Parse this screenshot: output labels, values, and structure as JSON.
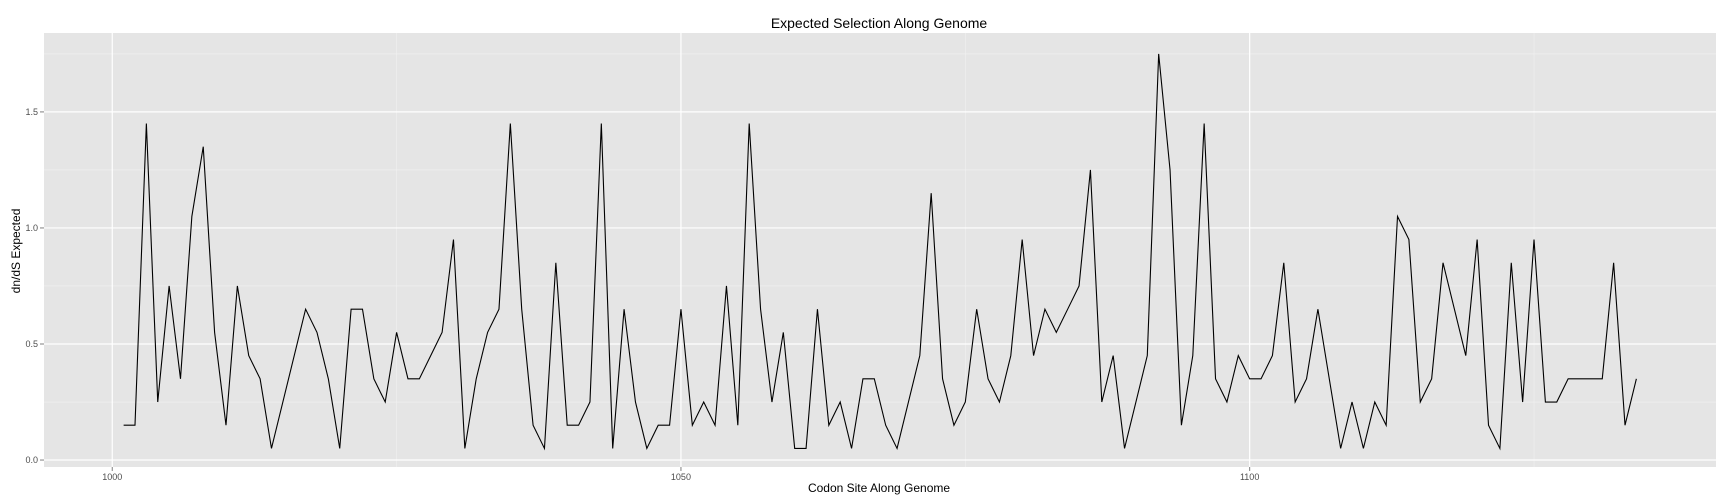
{
  "chart_data": {
    "type": "line",
    "title": "Expected Selection Along Genome",
    "xlabel": "Codon Site Along Genome",
    "ylabel": "dn/dS Expected",
    "xlim": [
      994,
      1141
    ],
    "ylim": [
      -0.03,
      1.84
    ],
    "x_ticks": [
      1000,
      1050,
      1100
    ],
    "y_ticks": [
      0.0,
      0.5,
      1.0,
      1.5
    ],
    "x_tick_labels": [
      "1000",
      "1050",
      "1100"
    ],
    "y_tick_labels": [
      "0.0",
      "0.5",
      "1.0",
      "1.5"
    ],
    "grid": true,
    "background_color": "#e5e5e5",
    "grid_color": "#ffffff",
    "line_color": "#000000",
    "x": [
      1001,
      1002,
      1003,
      1004,
      1005,
      1006,
      1007,
      1008,
      1009,
      1010,
      1011,
      1012,
      1013,
      1014,
      1015,
      1016,
      1017,
      1018,
      1019,
      1020,
      1021,
      1022,
      1023,
      1024,
      1025,
      1026,
      1027,
      1028,
      1029,
      1030,
      1031,
      1032,
      1033,
      1034,
      1035,
      1036,
      1037,
      1038,
      1039,
      1040,
      1041,
      1042,
      1043,
      1044,
      1045,
      1046,
      1047,
      1048,
      1049,
      1050,
      1051,
      1052,
      1053,
      1054,
      1055,
      1056,
      1057,
      1058,
      1059,
      1060,
      1061,
      1062,
      1063,
      1064,
      1065,
      1066,
      1067,
      1068,
      1069,
      1070,
      1071,
      1072,
      1073,
      1074,
      1075,
      1076,
      1077,
      1078,
      1079,
      1080,
      1081,
      1082,
      1083,
      1084,
      1085,
      1086,
      1087,
      1088,
      1089,
      1090,
      1091,
      1092,
      1093,
      1094,
      1095,
      1096,
      1097,
      1098,
      1099,
      1100,
      1101,
      1102,
      1103,
      1104,
      1105,
      1106,
      1107,
      1108,
      1109,
      1110,
      1111,
      1112,
      1113,
      1114,
      1115,
      1116,
      1117,
      1118,
      1119,
      1120,
      1121,
      1122,
      1123,
      1124,
      1125,
      1126,
      1127,
      1128,
      1129,
      1130,
      1131,
      1132,
      1133,
      1134
    ],
    "y": [
      0.15,
      0.15,
      1.45,
      0.25,
      0.75,
      0.35,
      1.05,
      1.35,
      0.55,
      0.15,
      0.75,
      0.45,
      0.35,
      0.05,
      0.25,
      0.45,
      0.65,
      0.55,
      0.35,
      0.05,
      0.65,
      0.65,
      0.35,
      0.25,
      0.55,
      0.35,
      0.35,
      0.45,
      0.55,
      0.95,
      0.05,
      0.35,
      0.55,
      0.65,
      1.45,
      0.65,
      0.15,
      0.05,
      0.85,
      0.15,
      0.15,
      0.25,
      1.45,
      0.05,
      0.65,
      0.25,
      0.05,
      0.15,
      0.15,
      0.65,
      0.15,
      0.25,
      0.15,
      0.75,
      0.15,
      1.45,
      0.65,
      0.25,
      0.55,
      0.05,
      0.05,
      0.65,
      0.15,
      0.25,
      0.05,
      0.35,
      0.35,
      0.15,
      0.05,
      0.25,
      0.45,
      1.15,
      0.35,
      0.15,
      0.25,
      0.65,
      0.35,
      0.25,
      0.45,
      0.95,
      0.45,
      0.65,
      0.55,
      0.65,
      0.75,
      1.25,
      0.25,
      0.45,
      0.05,
      0.25,
      0.45,
      1.75,
      1.25,
      0.15,
      0.45,
      1.45,
      0.35,
      0.25,
      0.45,
      0.35,
      0.35,
      0.45,
      0.85,
      0.25,
      0.35,
      0.65,
      0.35,
      0.05,
      0.25,
      0.05,
      0.25,
      0.15,
      1.05,
      0.95,
      0.25,
      0.35,
      0.85,
      0.65,
      0.45,
      0.95,
      0.15,
      0.05,
      0.85,
      0.25,
      0.95,
      0.25,
      0.25,
      0.35,
      0.35,
      0.35,
      0.35,
      0.85,
      0.15,
      0.35
    ]
  }
}
